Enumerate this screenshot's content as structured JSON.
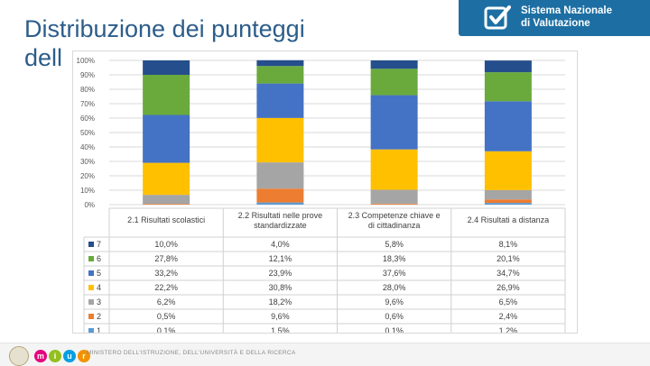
{
  "slide": {
    "title": "Distribuzione dei punteggi\ndell"
  },
  "brand": {
    "name": "Sistema Nazionale\ndi Valutazione",
    "color": "#1d6fa3"
  },
  "footer": {
    "logo_letters": [
      "m",
      "i",
      "u",
      "r"
    ],
    "ministry": "MINISTERO DELL'ISTRUZIONE, DELL'UNIVERSITÀ E DELLA RICERCA"
  },
  "chart_data": {
    "type": "bar",
    "stacked": true,
    "y_ticks": [
      "0%",
      "10%",
      "20%",
      "30%",
      "40%",
      "50%",
      "60%",
      "70%",
      "80%",
      "90%",
      "100%"
    ],
    "ylim": [
      0,
      100
    ],
    "categories": [
      [
        "2.1 Risultati scolastici"
      ],
      [
        "2.2 Risultati nelle prove",
        "standardizzate"
      ],
      [
        "2.3 Competenze chiave e",
        "di cittadinanza"
      ],
      [
        "2.4 Risultati a distanza"
      ]
    ],
    "series": [
      {
        "name": "7",
        "color": "#254e8c",
        "values": [
          10.0,
          4.0,
          5.8,
          8.1
        ],
        "labels": [
          "10,0%",
          "4,0%",
          "5,8%",
          "8,1%"
        ]
      },
      {
        "name": "6",
        "color": "#6aaa3c",
        "values": [
          27.8,
          12.1,
          18.3,
          20.1
        ],
        "labels": [
          "27,8%",
          "12,1%",
          "18,3%",
          "20,1%"
        ]
      },
      {
        "name": "5",
        "color": "#4472c4",
        "values": [
          33.2,
          23.9,
          37.6,
          34.7
        ],
        "labels": [
          "33,2%",
          "23,9%",
          "37,6%",
          "34,7%"
        ]
      },
      {
        "name": "4",
        "color": "#ffc000",
        "values": [
          22.2,
          30.8,
          28.0,
          26.9
        ],
        "labels": [
          "22,2%",
          "30,8%",
          "28,0%",
          "26,9%"
        ]
      },
      {
        "name": "3",
        "color": "#a5a5a5",
        "values": [
          6.2,
          18.2,
          9.6,
          6.5
        ],
        "labels": [
          "6,2%",
          "18,2%",
          "9,6%",
          "6,5%"
        ]
      },
      {
        "name": "2",
        "color": "#ed7d31",
        "values": [
          0.5,
          9.6,
          0.6,
          2.4
        ],
        "labels": [
          "0,5%",
          "9,6%",
          "0,6%",
          "2,4%"
        ]
      },
      {
        "name": "1",
        "color": "#5b9bd5",
        "values": [
          0.1,
          1.5,
          0.1,
          1.2
        ],
        "labels": [
          "0,1%",
          "1,5%",
          "0,1%",
          "1,2%"
        ]
      }
    ]
  }
}
